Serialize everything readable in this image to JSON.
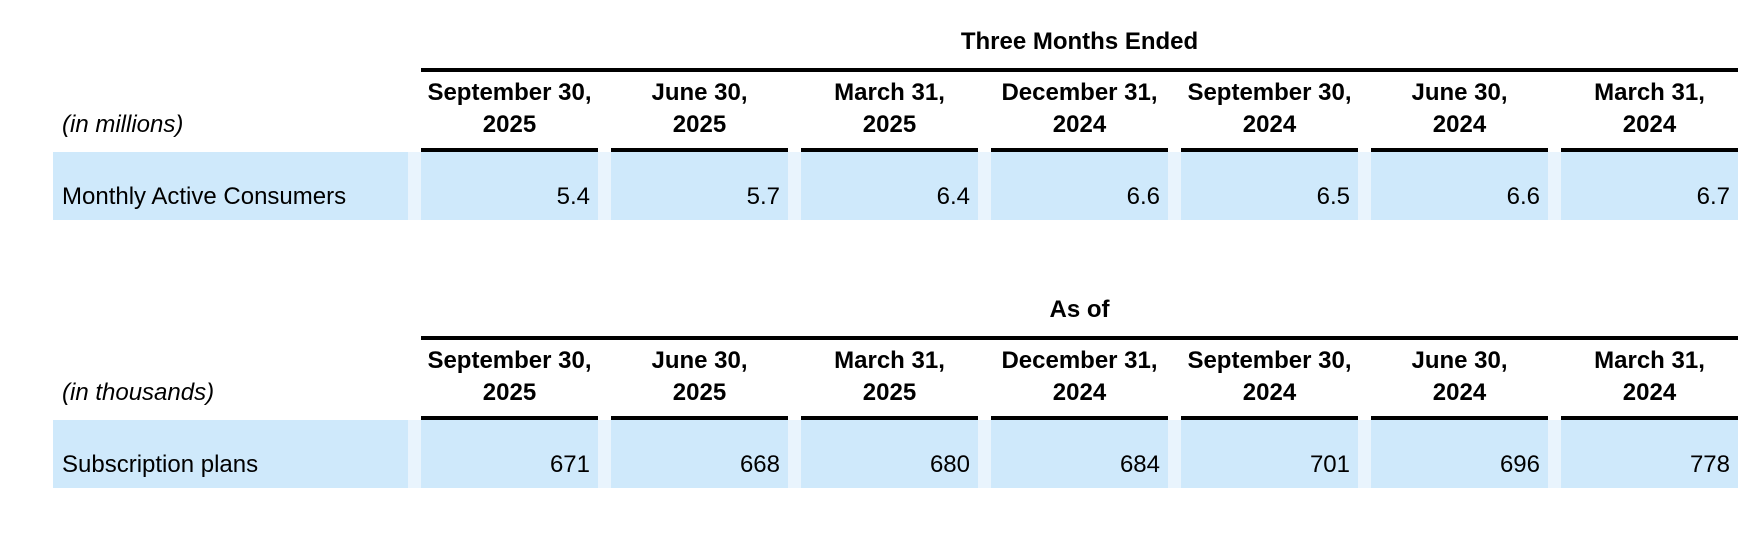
{
  "colors": {
    "row_highlight": "#cfe9fb",
    "column_gap_stripe": "#e9f4fd",
    "rule": "#000000",
    "text": "#000000"
  },
  "tables": [
    {
      "title": "Three Months Ended",
      "unit_label": "(in millions)",
      "columns": [
        {
          "line1": "September 30,",
          "line2": "2025"
        },
        {
          "line1": "June 30,",
          "line2": "2025"
        },
        {
          "line1": "March 31,",
          "line2": "2025"
        },
        {
          "line1": "December 31,",
          "line2": "2024"
        },
        {
          "line1": "September 30,",
          "line2": "2024"
        },
        {
          "line1": "June 30,",
          "line2": "2024"
        },
        {
          "line1": "March 31,",
          "line2": "2024"
        }
      ],
      "rows": [
        {
          "label": "Monthly Active Consumers",
          "values": [
            "5.4",
            "5.7",
            "6.4",
            "6.6",
            "6.5",
            "6.6",
            "6.7"
          ]
        }
      ]
    },
    {
      "title": "As of",
      "unit_label": "(in thousands)",
      "columns": [
        {
          "line1": "September 30,",
          "line2": "2025"
        },
        {
          "line1": "June 30,",
          "line2": "2025"
        },
        {
          "line1": "March 31,",
          "line2": "2025"
        },
        {
          "line1": "December 31,",
          "line2": "2024"
        },
        {
          "line1": "September 30,",
          "line2": "2024"
        },
        {
          "line1": "June 30,",
          "line2": "2024"
        },
        {
          "line1": "March 31,",
          "line2": "2024"
        }
      ],
      "rows": [
        {
          "label": "Subscription plans",
          "values": [
            "671",
            "668",
            "680",
            "684",
            "701",
            "696",
            "778"
          ]
        }
      ]
    }
  ]
}
